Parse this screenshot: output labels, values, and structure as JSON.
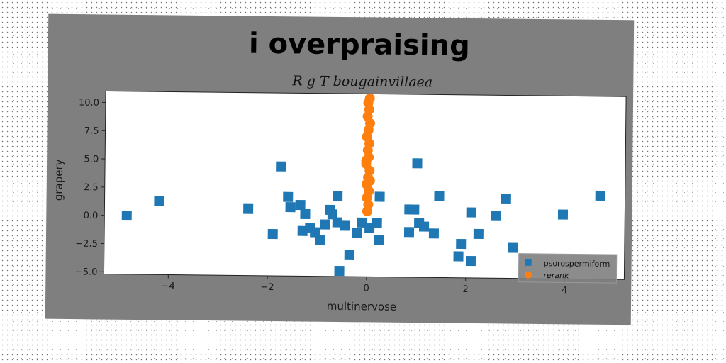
{
  "chart_data": {
    "type": "scatter",
    "title": "i overpraising",
    "subtitle": "R g T bougainvillaea",
    "xlabel": "multinervose",
    "ylabel": "grapery",
    "xlim": [
      -5.3,
      5.2
    ],
    "ylim": [
      -5.2,
      11.0
    ],
    "xticks": [
      -4,
      -2,
      0,
      2,
      4
    ],
    "xtick_labels": [
      "−4",
      "−2",
      "0",
      "2",
      "4"
    ],
    "yticks": [
      -5.0,
      -2.5,
      0.0,
      2.5,
      5.0,
      7.5,
      10.0
    ],
    "ytick_labels": [
      "−5.0",
      "−2.5",
      "0.0",
      "2.5",
      "5.0",
      "7.5",
      "10.0"
    ],
    "grid": false,
    "legend_position": "lower-right",
    "series": [
      {
        "name": "psorospermiform",
        "color": "#1f77b4",
        "marker": "square",
        "points": [
          [
            -4.85,
            0.0
          ],
          [
            -4.2,
            1.3
          ],
          [
            -2.4,
            0.7
          ],
          [
            -1.75,
            4.5
          ],
          [
            -1.9,
            -1.5
          ],
          [
            -1.6,
            1.8
          ],
          [
            -1.55,
            0.9
          ],
          [
            -1.35,
            1.1
          ],
          [
            -1.25,
            0.3
          ],
          [
            -1.3,
            -1.2
          ],
          [
            -1.15,
            -0.9
          ],
          [
            -1.05,
            -1.3
          ],
          [
            -0.95,
            -2.0
          ],
          [
            -0.85,
            -0.6
          ],
          [
            -0.75,
            0.7
          ],
          [
            -0.7,
            0.3
          ],
          [
            -0.6,
            -0.4
          ],
          [
            -0.6,
            1.9
          ],
          [
            -0.45,
            -0.7
          ],
          [
            -0.55,
            -4.7
          ],
          [
            -0.35,
            -3.3
          ],
          [
            -0.2,
            -1.3
          ],
          [
            -0.1,
            -0.4
          ],
          [
            0.05,
            -0.9
          ],
          [
            0.2,
            -0.4
          ],
          [
            0.25,
            -1.9
          ],
          [
            0.25,
            1.9
          ],
          [
            0.85,
            0.8
          ],
          [
            0.95,
            0.8
          ],
          [
            0.85,
            -1.2
          ],
          [
            1.05,
            -0.4
          ],
          [
            1.15,
            -0.7
          ],
          [
            1.0,
            4.9
          ],
          [
            1.35,
            -1.3
          ],
          [
            1.45,
            2.0
          ],
          [
            1.9,
            -2.2
          ],
          [
            1.85,
            -3.3
          ],
          [
            2.1,
            0.6
          ],
          [
            2.1,
            -3.7
          ],
          [
            2.25,
            -1.3
          ],
          [
            2.6,
            0.3
          ],
          [
            2.8,
            1.8
          ],
          [
            2.95,
            -2.5
          ],
          [
            3.95,
            0.5
          ],
          [
            4.7,
            2.2
          ]
        ]
      },
      {
        "name": "rerank",
        "color": "#ff7f0e",
        "marker": "circle",
        "points": [
          [
            0.0,
            0.6
          ],
          [
            0.02,
            1.2
          ],
          [
            -0.01,
            1.8
          ],
          [
            0.03,
            2.4
          ],
          [
            -0.02,
            3.0
          ],
          [
            0.01,
            3.6
          ],
          [
            0.04,
            4.2
          ],
          [
            -0.03,
            4.8
          ],
          [
            0.02,
            5.4
          ],
          [
            0.0,
            6.0
          ],
          [
            0.03,
            6.6
          ],
          [
            -0.02,
            7.2
          ],
          [
            0.01,
            7.8
          ],
          [
            0.04,
            8.4
          ],
          [
            -0.01,
            9.0
          ],
          [
            0.02,
            9.6
          ],
          [
            0.0,
            10.2
          ],
          [
            0.03,
            10.6
          ],
          [
            -0.03,
            5.1
          ],
          [
            0.05,
            3.3
          ]
        ]
      }
    ]
  }
}
